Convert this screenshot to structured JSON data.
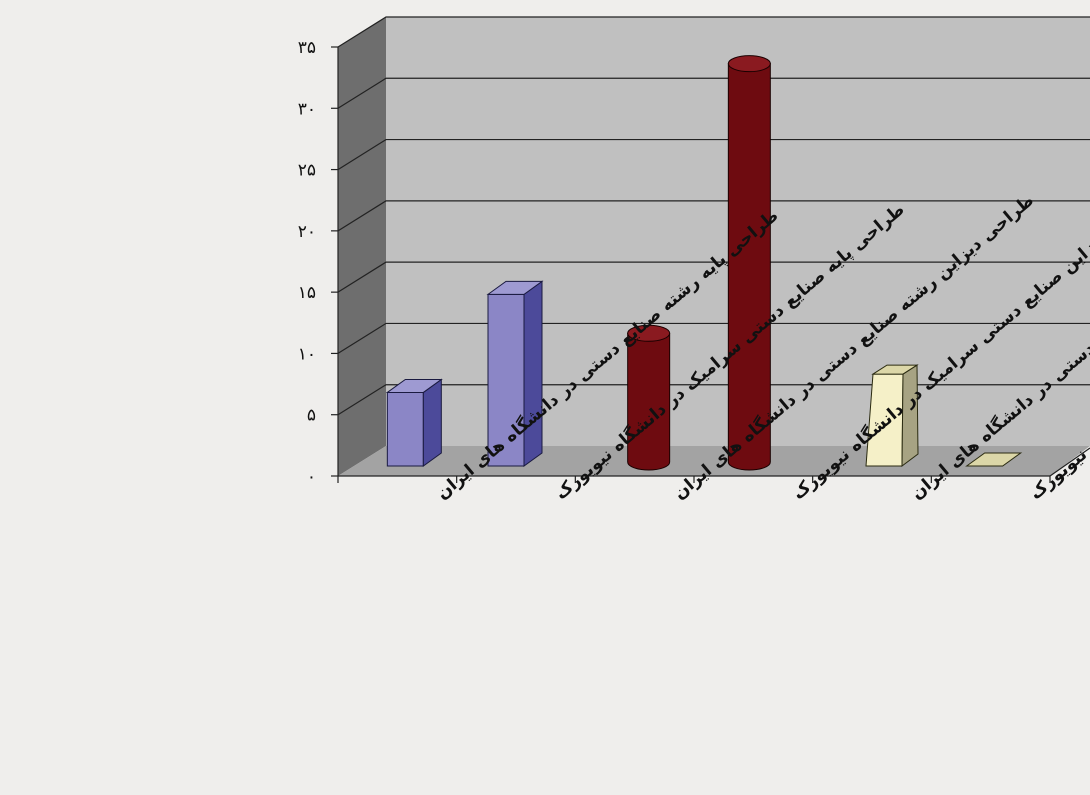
{
  "chart_data": {
    "type": "bar",
    "title": "",
    "xlabel": "",
    "ylabel": "",
    "ylim": [
      0,
      35
    ],
    "grid": true,
    "legend": "none",
    "yticks": [
      "۰",
      "۵",
      "۱۰",
      "۱۵",
      "۲۰",
      "۲۵",
      "۳۰",
      "۳۵"
    ],
    "categories": [
      "طراحی پایه رشته صنایع دستی در دانشگاه های ایران",
      "طراحی پایه صنایع دستی سرامیک در دانشگاه نیویورک",
      "طراحی دیزاین رشته صنایع دستی در دانشگاه های ایران",
      "طراحی دیزاین صنایع دستی سرامیک در دانشگاه نیویورک",
      "طراحی سنتی رشته صنایع دستی در دانشگاه های ایران",
      "طراحی سنتی صنایع دستی سرامیک در دانشگاه نیویورک"
    ],
    "values": [
      6,
      14,
      10.5,
      32.5,
      7.5,
      0
    ],
    "shapes": [
      "box",
      "box",
      "cylinder",
      "cylinder",
      "pyramid",
      "pyramid"
    ],
    "colors": {
      "box_front": "#8b86c6",
      "box_side": "#4c4a9a",
      "box_top": "#9e9ad2",
      "cyl_body": "#6e0b10",
      "cyl_top": "#8a1a20",
      "pyr_front": "#f5f0c8",
      "pyr_side": "#a7a383",
      "pyr_top": "#dcd7a8",
      "wall_back": "#c0c0c0",
      "wall_side": "#6e6e6e",
      "floor": "#a3a3a3",
      "gridline": "#222222",
      "background": "#efeeec"
    }
  }
}
